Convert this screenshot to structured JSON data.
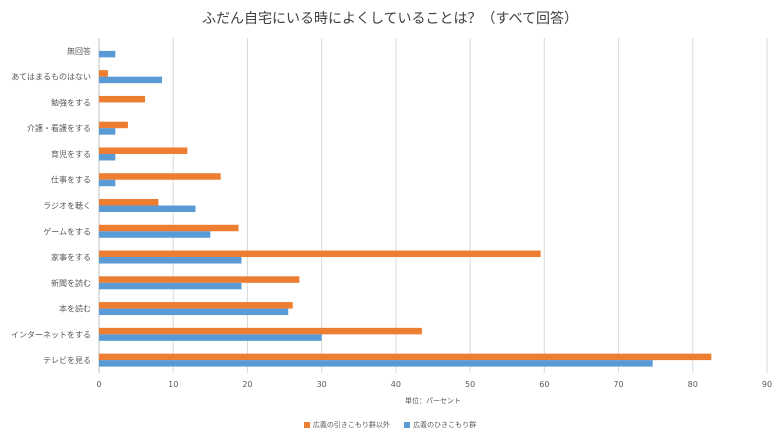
{
  "chart_data": {
    "type": "bar",
    "orientation": "horizontal",
    "title": "ふだん自宅にいる時によくしていることは？（すべて回答）",
    "xlabel": "単位：パーセント",
    "ylabel": "",
    "xlim": [
      0,
      90
    ],
    "x_ticks": [
      "0",
      "10",
      "20",
      "30",
      "40",
      "50",
      "60",
      "70",
      "80",
      "90"
    ],
    "grid": true,
    "legend_position": "bottom",
    "categories": [
      "無回答",
      "あてはまるものはない",
      "勉強をする",
      "介護・看護をする",
      "育児をする",
      "仕事をする",
      "ラジオを聴く",
      "ゲームをする",
      "家事をする",
      "新聞を読む",
      "本を読む",
      "インターネットをする",
      "テレビを見る"
    ],
    "series": [
      {
        "name": "広義の引きこもり群以外",
        "color": "#ED7D31",
        "values": [
          0,
          1.2,
          6.2,
          3.9,
          11.9,
          16.4,
          8.0,
          18.8,
          59.5,
          27.0,
          26.1,
          43.5,
          82.5
        ]
      },
      {
        "name": "広義のひきこもり群",
        "color": "#5B9BD5",
        "values": [
          2.2,
          8.5,
          0,
          2.2,
          2.2,
          2.2,
          13.0,
          15.0,
          19.2,
          19.2,
          25.5,
          30.0,
          74.6
        ]
      }
    ]
  }
}
